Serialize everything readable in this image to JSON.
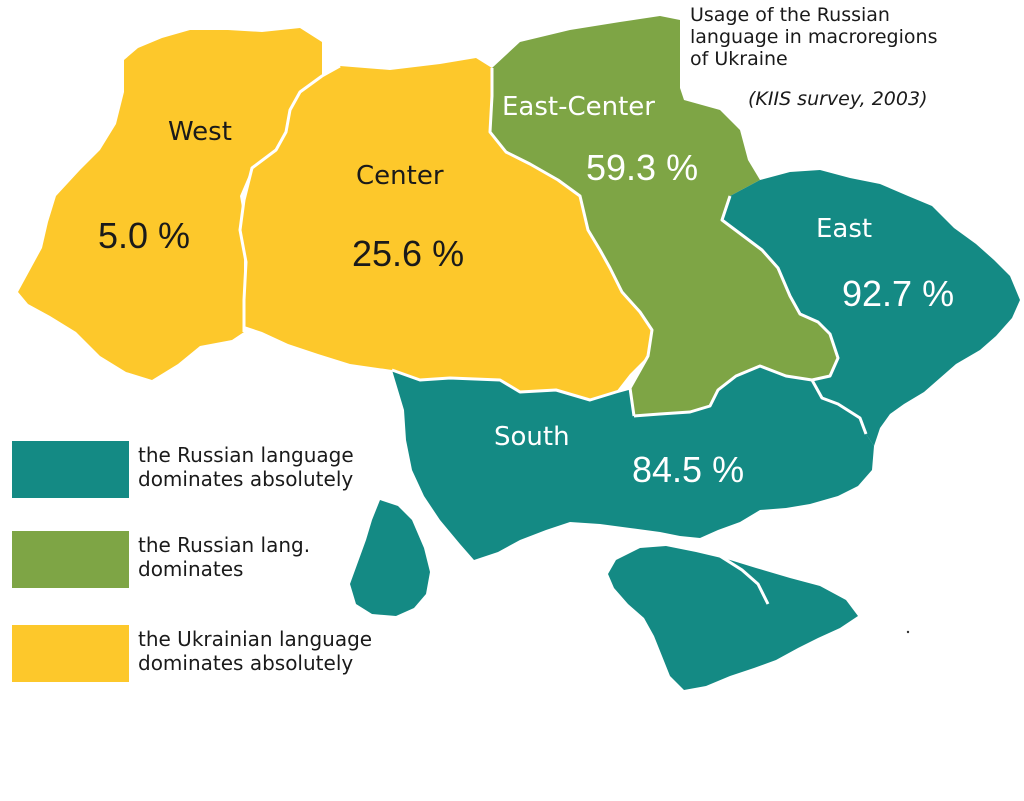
{
  "map": {
    "title_lines": [
      "Usage of the Russian",
      "language in macroregions",
      "of Ukraine"
    ],
    "subtitle": "(KIIS survey, 2003)",
    "colors": {
      "russian_absolute": "#148a84",
      "russian": "#7ea545",
      "ukrainian_absolute": "#fdc82b",
      "border": "#ffffff",
      "background": "#ffffff"
    },
    "regions": {
      "west": {
        "name": "West",
        "value": "5.0 %",
        "category": "ukrainian_absolute"
      },
      "center": {
        "name": "Center",
        "value": "25.6 %",
        "category": "ukrainian_absolute"
      },
      "east_center": {
        "name": "East-Center",
        "value": "59.3 %",
        "category": "russian"
      },
      "east": {
        "name": "East",
        "value": "92.7 %",
        "category": "russian_absolute"
      },
      "south": {
        "name": "South",
        "value": "84.5 %",
        "category": "russian_absolute"
      }
    },
    "legend": {
      "russian_absolute": {
        "line1": "the Russian language",
        "line2": "dominates absolutely"
      },
      "russian": {
        "line1": "the Russian lang.",
        "line2": "dominates"
      },
      "ukrainian_absolute": {
        "line1": "the Ukrainian language",
        "line2": "dominates  absolutely"
      }
    }
  }
}
